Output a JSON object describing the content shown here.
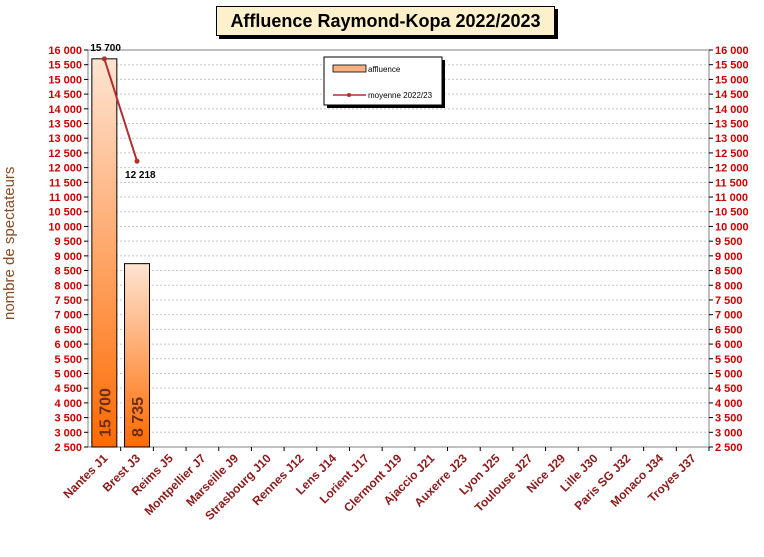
{
  "title": "Affluence Raymond-Kopa 2022/2023",
  "colors": {
    "bar_fill_top": "#fde4d2",
    "bar_fill_bottom": "#ff6a00",
    "line": "#b03030",
    "axis_text": "#cc0000",
    "category_text": "#8b1a1a",
    "ylabel_text": "#8a4a22",
    "title_bg": "#fdf1cc"
  },
  "chart_data": {
    "type": "bar",
    "title": "Affluence Raymond-Kopa 2022/2023",
    "xlabel": "",
    "ylabel": "nombre de spectateurs",
    "ylim": [
      2500,
      16000
    ],
    "ytick_step": 500,
    "ytick_labels": [
      "2 500",
      "3 000",
      "3 500",
      "4 000",
      "4 500",
      "5 000",
      "5 500",
      "6 000",
      "6 500",
      "7 000",
      "7 500",
      "8 000",
      "8 500",
      "9 000",
      "9 500",
      "10 000",
      "10 500",
      "11 000",
      "11 500",
      "12 000",
      "12 500",
      "13 000",
      "13 500",
      "14 000",
      "14 500",
      "15 000",
      "15 500",
      "16 000"
    ],
    "categories": [
      "Nantes J1",
      "Brest J3",
      "Reims J5",
      "Montpellier J7",
      "Marseille J9",
      "Strasbourg J10",
      "Rennes J12",
      "Lens J14",
      "Lorient J17",
      "Clermont J19",
      "Ajaccio J21",
      "Auxerre J23",
      "Lyon J25",
      "Toulouse J27",
      "Nice J29",
      "Lille J30",
      "Paris SG J32",
      "Monaco J34",
      "Troyes J37"
    ],
    "series": [
      {
        "name": "affluence",
        "kind": "bar",
        "values": [
          15700,
          8735,
          null,
          null,
          null,
          null,
          null,
          null,
          null,
          null,
          null,
          null,
          null,
          null,
          null,
          null,
          null,
          null,
          null
        ],
        "inner_labels": [
          "15 700",
          "8 735"
        ]
      },
      {
        "name": "moyenne 2022/23",
        "kind": "line",
        "values": [
          15700,
          12218,
          null,
          null,
          null,
          null,
          null,
          null,
          null,
          null,
          null,
          null,
          null,
          null,
          null,
          null,
          null,
          null,
          null
        ],
        "point_labels": [
          "15 700",
          "12 218"
        ]
      }
    ],
    "grid": true,
    "legend": {
      "position": "top-center",
      "entries": [
        "affluence",
        "moyenne 2022/23"
      ]
    }
  }
}
